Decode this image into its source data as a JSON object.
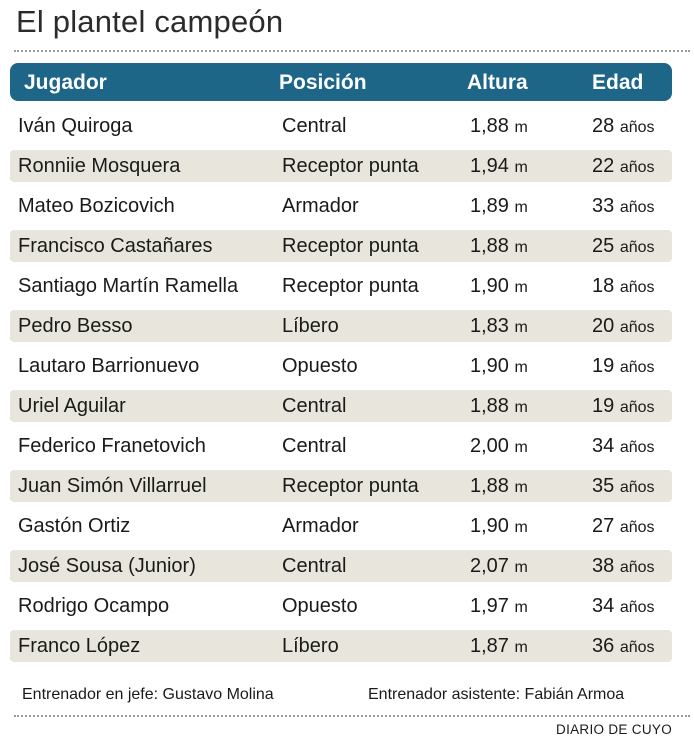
{
  "title": "El plantel campeón",
  "chart_data": {
    "type": "table",
    "columns": [
      "Jugador",
      "Posición",
      "Altura",
      "Edad"
    ],
    "rows": [
      {
        "jugador": "Iván Quiroga",
        "posicion": "Central",
        "altura": "1,88",
        "edad": "28"
      },
      {
        "jugador": "Ronniie Mosquera",
        "posicion": "Receptor punta",
        "altura": "1,94",
        "edad": "22"
      },
      {
        "jugador": "Mateo Bozicovich",
        "posicion": "Armador",
        "altura": "1,89",
        "edad": "33"
      },
      {
        "jugador": "Francisco Castañares",
        "posicion": "Receptor punta",
        "altura": "1,88",
        "edad": "25"
      },
      {
        "jugador": "Santiago Martín Ramella",
        "posicion": "Receptor punta",
        "altura": "1,90",
        "edad": "18"
      },
      {
        "jugador": "Pedro Besso",
        "posicion": "Líbero",
        "altura": "1,83",
        "edad": "20"
      },
      {
        "jugador": "Lautaro Barrionuevo",
        "posicion": "Opuesto",
        "altura": "1,90",
        "edad": "19"
      },
      {
        "jugador": "Uriel Aguilar",
        "posicion": "Central",
        "altura": "1,88",
        "edad": "19"
      },
      {
        "jugador": "Federico Franetovich",
        "posicion": "Central",
        "altura": "2,00",
        "edad": "34"
      },
      {
        "jugador": "Juan Simón Villarruel",
        "posicion": "Receptor punta",
        "altura": "1,88",
        "edad": "35"
      },
      {
        "jugador": "Gastón Ortiz",
        "posicion": "Armador",
        "altura": "1,90",
        "edad": "27"
      },
      {
        "jugador": "José Sousa (Junior)",
        "posicion": "Central",
        "altura": "2,07",
        "edad": "38"
      },
      {
        "jugador": "Rodrigo Ocampo",
        "posicion": "Opuesto",
        "altura": "1,97",
        "edad": "34"
      },
      {
        "jugador": "Franco López",
        "posicion": "Líbero",
        "altura": "1,87",
        "edad": "36"
      }
    ],
    "units": {
      "altura": "m",
      "edad": "años"
    }
  },
  "footer": {
    "head_coach": "Entrenador en jefe: Gustavo Molina",
    "assistant_coach": "Entrenador asistente: Fabián Armoa"
  },
  "source": "DIARIO DE CUYO",
  "colors": {
    "header_bg": "#1e6688",
    "alt_row_bg": "#e8e6dc"
  }
}
